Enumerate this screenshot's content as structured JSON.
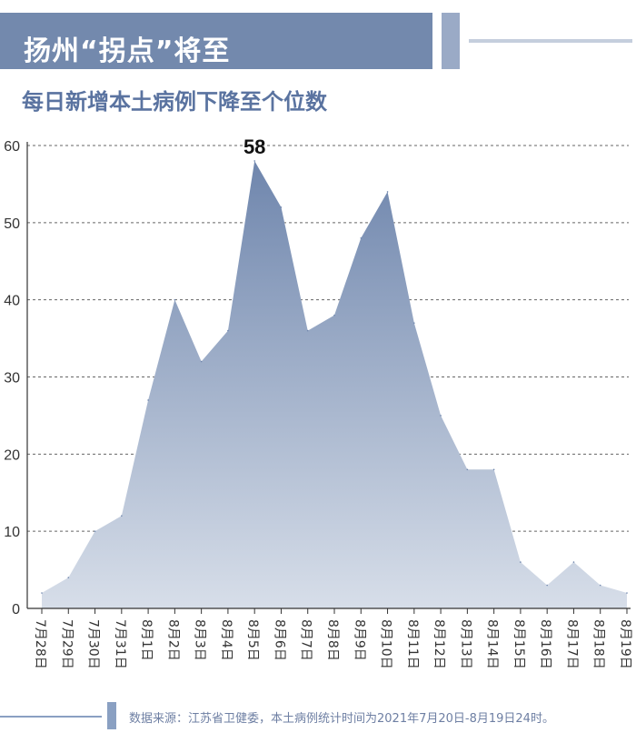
{
  "header": {
    "title": "扬州“拐点”将至",
    "subtitle": "每日新增本土病例下降至个位数"
  },
  "footer": {
    "source": "数据来源：江苏省卫健委，本土病例统计时间为2021年7月20日-8月19日24时。"
  },
  "colors": {
    "banner": "#7389ad",
    "area_top": "#6f86ad",
    "area_bottom": "#d7dee9",
    "subtitle": "#5a73a0"
  },
  "chart_data": {
    "type": "area",
    "title": "",
    "xlabel": "",
    "ylabel": "",
    "ylim": [
      0,
      60
    ],
    "yticks": [
      0,
      10,
      20,
      30,
      40,
      50,
      60
    ],
    "grid": true,
    "categories": [
      "7月28日",
      "7月29日",
      "7月30日",
      "7月31日",
      "8月1日",
      "8月2日",
      "8月3日",
      "8月4日",
      "8月5日",
      "8月6日",
      "8月7日",
      "8月8日",
      "8月9日",
      "8月10日",
      "8月11日",
      "8月12日",
      "8月13日",
      "8月14日",
      "8月15日",
      "8月16日",
      "8月17日",
      "8月18日",
      "8月19日"
    ],
    "values": [
      2,
      4,
      10,
      12,
      27,
      40,
      32,
      36,
      58,
      52,
      36,
      38,
      48,
      54,
      37,
      25,
      18,
      18,
      6,
      3,
      6,
      3,
      2
    ],
    "annotations": [
      {
        "category": "8月5日",
        "text": "58"
      }
    ]
  }
}
